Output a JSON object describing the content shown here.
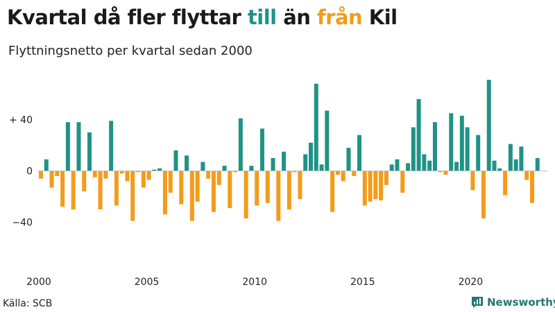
{
  "header": {
    "title_part1": "Kvartal då fler flyttar ",
    "title_in": "till",
    "title_part2": " än ",
    "title_out": "från",
    "title_part3": " Kil",
    "subtitle": "Flyttningsnetto per kvartal sedan 2000"
  },
  "footer": {
    "source": "Källa: SCB",
    "brand": "Newsworthy"
  },
  "colors": {
    "positive": "#1f9385",
    "negative": "#f39c1a",
    "axis": "#bdbdbd",
    "brand": "#26786d"
  },
  "chart_data": {
    "type": "bar",
    "title": "Kvartal då fler flyttar till än från Kil",
    "subtitle": "Flyttningsnetto per kvartal sedan 2000",
    "xlabel": "",
    "ylabel": "",
    "ylim": [
      -72,
      72
    ],
    "yticks": [
      {
        "value": 40,
        "label": "+ 40"
      },
      {
        "value": 0,
        "label": "0"
      },
      {
        "value": -40,
        "label": "−40"
      }
    ],
    "xticks": [
      {
        "value": 2000,
        "label": "2000"
      },
      {
        "value": 2005,
        "label": "2005"
      },
      {
        "value": 2010,
        "label": "2010"
      },
      {
        "value": 2015,
        "label": "2015"
      },
      {
        "value": 2020,
        "label": "2020"
      }
    ],
    "grid": false,
    "legend": "none",
    "start_year": 2000,
    "values": [
      -6,
      9,
      -13,
      -4,
      -28,
      38,
      -30,
      38,
      -16,
      30,
      -5,
      -30,
      -6,
      39,
      -27,
      -2,
      -8,
      -39,
      -1,
      -13,
      -7,
      1,
      2,
      -34,
      -17,
      16,
      -26,
      12,
      -39,
      -24,
      7,
      -6,
      -32,
      -11,
      4,
      -29,
      -1,
      41,
      -37,
      4,
      -27,
      33,
      -25,
      10,
      -39,
      15,
      -30,
      -1,
      -22,
      13,
      22,
      68,
      5,
      47,
      -32,
      -3,
      -8,
      18,
      -4,
      28,
      -27,
      -24,
      -22,
      -23,
      -11,
      5,
      9,
      -17,
      6,
      34,
      56,
      13,
      8,
      38,
      -1,
      -3,
      45,
      7,
      43,
      34,
      -15,
      28,
      -37,
      71,
      8,
      2,
      -19,
      21,
      9,
      19,
      -7,
      -25,
      10
    ]
  }
}
